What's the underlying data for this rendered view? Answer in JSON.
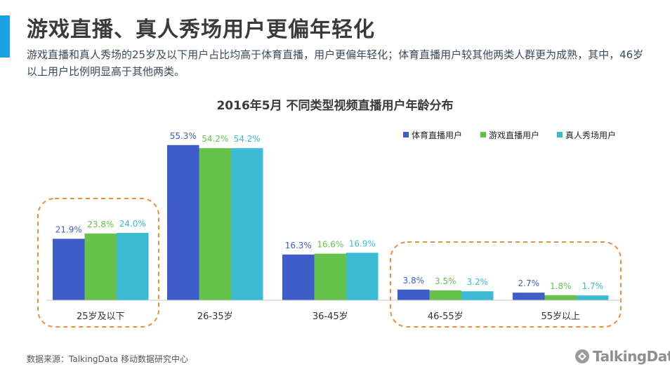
{
  "slide": {
    "title": "游戏直播、真人秀场用户更偏年轻化",
    "subtitle": "游戏直播和真人秀场的25岁及以下用户占比均高于体育直播，用户更偏年轻化；体育直播用户较其他两类人群更为成熟，其中，46岁以上用户比例明显高于其他两类。",
    "accent_color": "#1ba1e2",
    "source": "数据来源：TalkingData 移动数据研究中心",
    "logo_text": "TalkingData"
  },
  "chart_data": {
    "type": "bar",
    "title": "2016年5月  不同类型视频直播用户年龄分布",
    "xlabel": "",
    "ylabel": "",
    "ylim": [
      0,
      60
    ],
    "grid": false,
    "legend_position": "top-right",
    "categories": [
      "25岁及以下",
      "26-35岁",
      "36-45岁",
      "46-55岁",
      "55岁以上"
    ],
    "series": [
      {
        "name": "体育直播用户",
        "color": "#3f5ccb",
        "values": [
          21.9,
          55.3,
          16.3,
          3.8,
          2.7
        ],
        "labels": [
          "21.9%",
          "55.3%",
          "16.3%",
          "3.8%",
          "2.7%"
        ]
      },
      {
        "name": "游戏直播用户",
        "color": "#66c24a",
        "values": [
          23.8,
          54.2,
          16.6,
          3.5,
          1.8
        ],
        "labels": [
          "23.8%",
          "54.2%",
          "16.6%",
          "3.5%",
          "1.8%"
        ]
      },
      {
        "name": "真人秀场用户",
        "color": "#3bbcd4",
        "values": [
          24.0,
          54.2,
          16.9,
          3.2,
          1.7
        ],
        "labels": [
          "24.0%",
          "54.2%",
          "16.9%",
          "3.2%",
          "1.7%"
        ]
      }
    ],
    "highlight_color": "#ec8f3c"
  }
}
